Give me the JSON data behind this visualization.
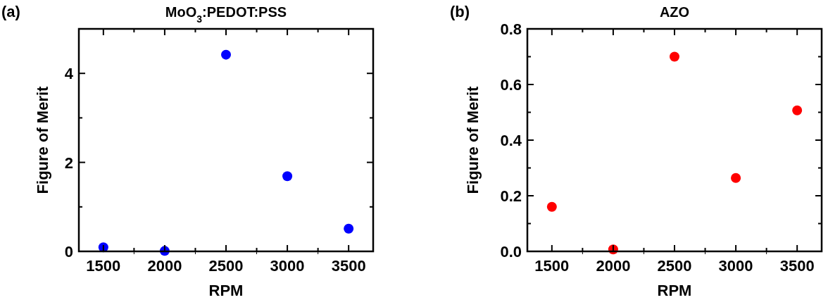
{
  "chart_data": [
    {
      "type": "scatter",
      "title": "MoO$_{3}$:PEDOT:PSS",
      "xlabel": "RPM",
      "ylabel": "Figure of Merit",
      "annotations": [
        "(a)"
      ],
      "x": [
        1500,
        2000,
        2500,
        3000,
        3500
      ],
      "series": [
        {
          "color": "#0000ff",
          "values": [
            0.09,
            0.01,
            4.42,
            1.69,
            0.51
          ]
        }
      ],
      "xlim": [
        1300,
        3700
      ],
      "xticks": [
        1500,
        {
          "value": 1750,
          "label": null
        },
        2000,
        {
          "value": 2250,
          "label": null
        },
        2500,
        {
          "value": 2750,
          "label": null
        },
        3000,
        {
          "value": 3250,
          "label": null
        },
        3500
      ],
      "ylim": [
        0,
        5
      ],
      "yticks": [
        0,
        {
          "value": 1,
          "label": null
        },
        2,
        {
          "value": 3,
          "label": null
        },
        4,
        {
          "value": 5,
          "label": null
        }
      ],
      "marker": "circle",
      "grid": false
    },
    {
      "type": "scatter",
      "title": "AZO",
      "xlabel": "RPM",
      "ylabel": "Figure of Merit",
      "annotations": [
        "(b)"
      ],
      "x": [
        1500,
        2000,
        2500,
        3000,
        3500
      ],
      "series": [
        {
          "color": "#ff0000",
          "values": [
            0.16,
            0.007,
            0.7,
            0.264,
            0.507
          ]
        }
      ],
      "xlim": [
        1300,
        3700
      ],
      "xticks": [
        1500,
        {
          "value": 1750,
          "label": null
        },
        2000,
        {
          "value": 2250,
          "label": null
        },
        2500,
        {
          "value": 2750,
          "label": null
        },
        3000,
        {
          "value": 3250,
          "label": null
        },
        3500
      ],
      "ylim": [
        0,
        0.8
      ],
      "yticks": [
        {
          "value": 0,
          "label": "0.0"
        },
        {
          "value": 0.1,
          "label": null
        },
        0.2,
        {
          "value": 0.3,
          "label": null
        },
        0.4,
        {
          "value": 0.5,
          "label": null
        },
        0.6,
        {
          "value": 0.7,
          "label": null
        },
        0.8
      ],
      "marker": "circle",
      "grid": false
    }
  ]
}
